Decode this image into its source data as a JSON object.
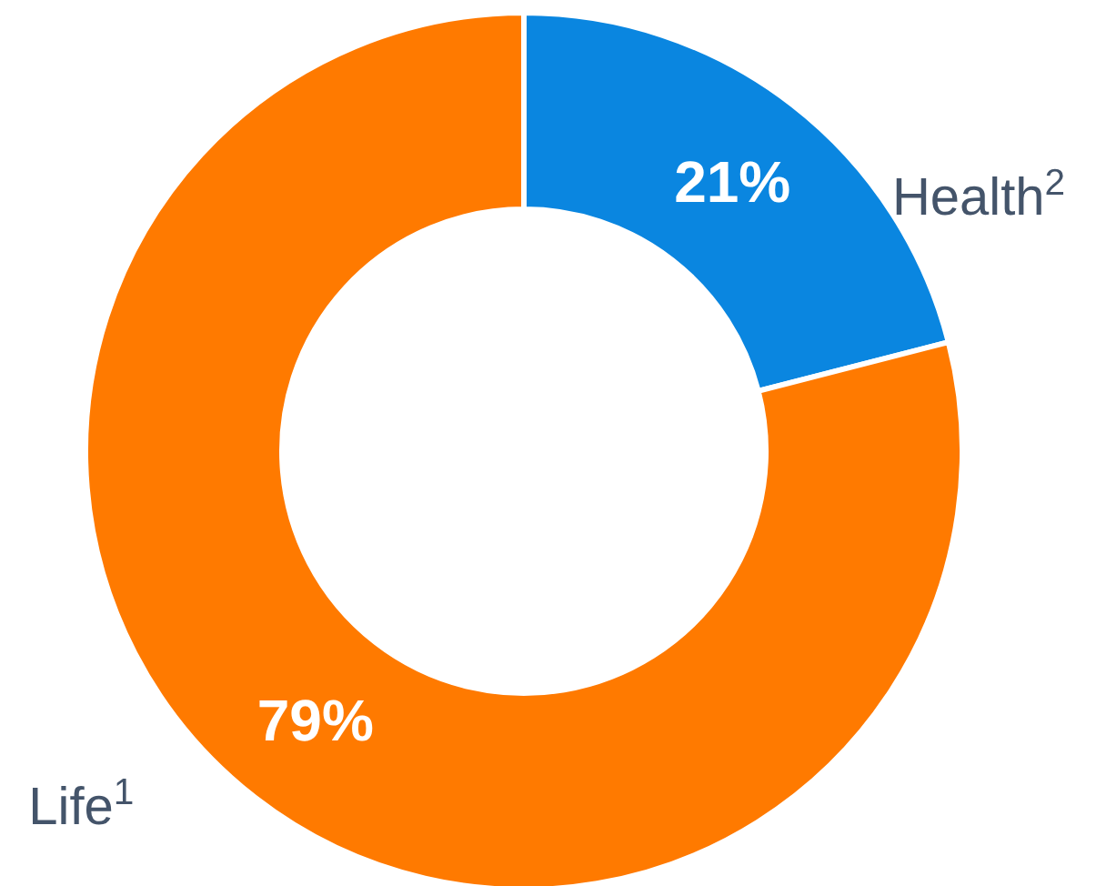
{
  "chart_data": {
    "type": "donut",
    "categories": [
      "Health$^{2}$",
      "Life$^{1}$"
    ],
    "values": [
      21,
      79
    ],
    "colors": [
      "#0a86e0",
      "#ff7a00"
    ],
    "value_labels": [
      "21%",
      "79%"
    ],
    "legend": false
  }
}
